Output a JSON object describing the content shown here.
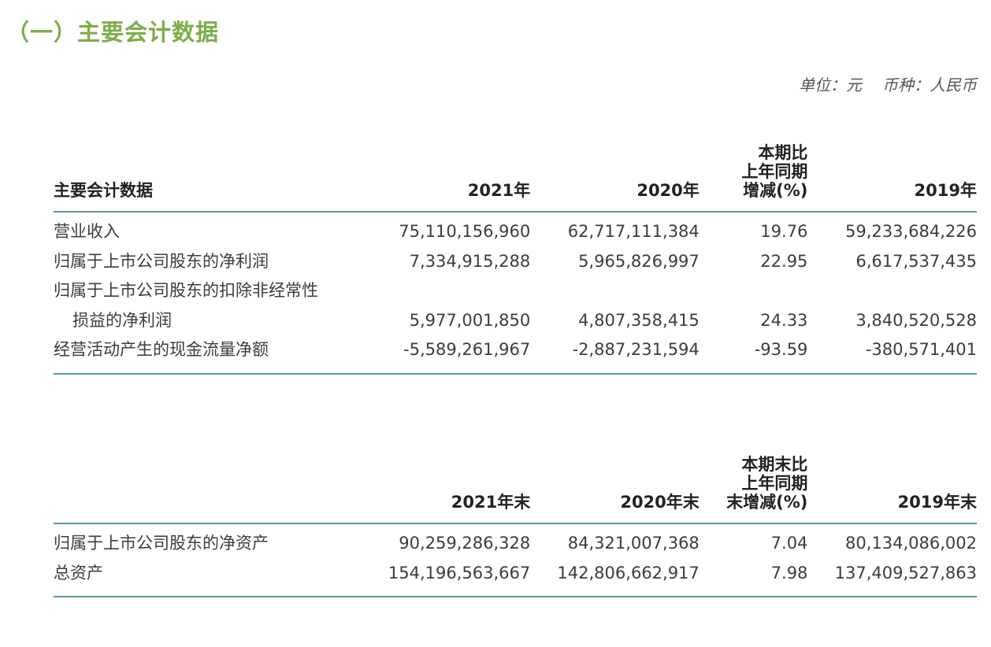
{
  "section_title": "（一）主要会计数据",
  "unit": {
    "unit_text": "单位：元",
    "currency_text": "币种：人民币"
  },
  "table1": {
    "headers": [
      [
        "主要会计数据"
      ],
      [
        "2021年"
      ],
      [
        "2020年"
      ],
      [
        "本期比",
        "上年同期",
        "增减(%)"
      ],
      [
        "2019年"
      ]
    ],
    "rows": [
      {
        "label": "营业收入",
        "label2": "",
        "v2021": "75,110,156,960",
        "v2020": "62,717,111,384",
        "change": "19.76",
        "v2019": "59,233,684,226"
      },
      {
        "label": "归属于上市公司股东的净利润",
        "label2": "",
        "v2021": "7,334,915,288",
        "v2020": "5,965,826,997",
        "change": "22.95",
        "v2019": "6,617,537,435"
      },
      {
        "label": "归属于上市公司股东的扣除非经常性",
        "label2": "损益的净利润",
        "v2021": "5,977,001,850",
        "v2020": "4,807,358,415",
        "change": "24.33",
        "v2019": "3,840,520,528"
      },
      {
        "label": "经营活动产生的现金流量净额",
        "label2": "",
        "v2021": "-5,589,261,967",
        "v2020": "-2,887,231,594",
        "change": "-93.59",
        "v2019": "-380,571,401"
      }
    ]
  },
  "table2": {
    "headers": [
      [
        ""
      ],
      [
        "2021年末"
      ],
      [
        "2020年末"
      ],
      [
        "本期末比",
        "上年同期",
        "末增减(%)"
      ],
      [
        "2019年末"
      ]
    ],
    "rows": [
      {
        "label": "归属于上市公司股东的净资产",
        "v2021": "90,259,286,328",
        "v2020": "84,321,007,368",
        "change": "7.04",
        "v2019": "80,134,086,002"
      },
      {
        "label": "总资产",
        "v2021": "154,196,563,667",
        "v2020": "142,806,662,917",
        "change": "7.98",
        "v2019": "137,409,527,863"
      }
    ]
  }
}
